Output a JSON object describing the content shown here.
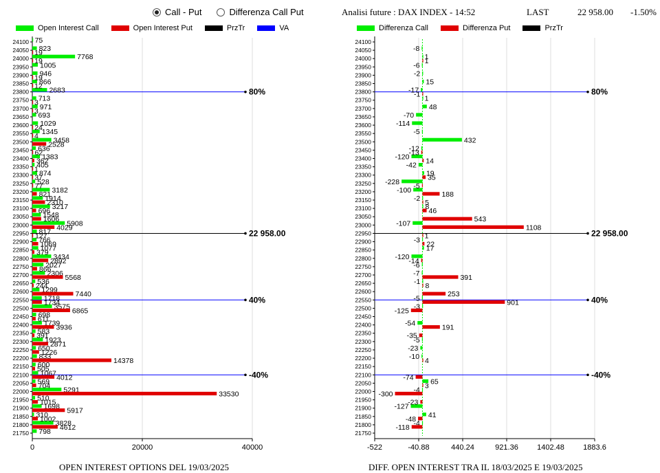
{
  "header": {
    "radio_call_put": "Call - Put",
    "radio_diff": "Differenza Call Put",
    "title": "Analisi future : DAX INDEX - 14:52",
    "last_label": "LAST",
    "last_value": "22 958.00",
    "last_change": "-1.50%"
  },
  "colors": {
    "call": "#00ee00",
    "put": "#e00000",
    "prztr": "#000000",
    "va": "#0000ff"
  },
  "legend_left": [
    {
      "label": "Open Interest Call",
      "color": "#00ee00"
    },
    {
      "label": "Open Interest Put",
      "color": "#e00000"
    },
    {
      "label": "PrzTr",
      "color": "#000000"
    },
    {
      "label": "VA",
      "color": "#0000ff"
    }
  ],
  "legend_right": [
    {
      "label": "Differenza Call",
      "color": "#00ee00"
    },
    {
      "label": "Differenza Put",
      "color": "#e00000"
    },
    {
      "label": "PrzTr",
      "color": "#000000"
    }
  ],
  "captions": {
    "left": "OPEN INTEREST OPTIONS DEL 19/03/2025",
    "right": "DIFF. OPEN INTEREST TRA IL 18/03/2025 E 19/03/2025"
  },
  "chart_data": [
    {
      "type": "bar",
      "orientation": "horizontal",
      "xticks": [
        0,
        20000,
        40000
      ],
      "xtick_labels": [
        "0",
        "20000",
        "40000"
      ],
      "xlim": [
        0,
        40000
      ],
      "strikes": [
        24100,
        24050,
        24000,
        23950,
        23900,
        23850,
        23800,
        23750,
        23700,
        23650,
        23600,
        23550,
        23500,
        23450,
        23400,
        23350,
        23300,
        23250,
        23200,
        23150,
        23100,
        23050,
        23000,
        22950,
        22900,
        22850,
        22800,
        22750,
        22700,
        22650,
        22600,
        22550,
        22500,
        22450,
        22400,
        22350,
        22300,
        22250,
        22200,
        22150,
        22100,
        22050,
        22000,
        21950,
        21900,
        21850,
        21800,
        21750
      ],
      "series": [
        {
          "name": "Open Interest Call",
          "values": [
            75,
            823,
            7768,
            1005,
            946,
            866,
            2683,
            713,
            971,
            693,
            1029,
            1345,
            3458,
            636,
            1383,
            405,
            874,
            528,
            3182,
            1914,
            3217,
            1548,
            5908,
            817,
            766,
            1077,
            3434,
            2027,
            2306,
            536,
            1299,
            1718,
            3575,
            698,
            1739,
            583,
            1923,
            650,
            833,
            600,
            1067,
            569,
            5291,
            510,
            1698,
            310,
            3828,
            798
          ],
          "labels": [
            "75",
            "823",
            "7768",
            "1005",
            "946",
            "866",
            "2683",
            "713",
            "971",
            "693",
            "1029",
            "1345",
            "3458",
            "636",
            "1383",
            "405",
            "874",
            "528",
            "3182",
            "1914",
            "3217",
            "1548",
            "5908",
            "817",
            "766",
            "1077",
            "3434",
            "2027",
            "2306",
            "536",
            "1299",
            "1718",
            "3575",
            "698",
            "1739",
            "583",
            "1923",
            "650",
            "833",
            "600",
            "1067",
            "569",
            "5291",
            "510",
            "1698",
            "310",
            "3828",
            "798"
          ]
        },
        {
          "name": "Open Interest Put",
          "values": [
            0,
            19,
            19,
            0,
            19,
            12,
            0,
            3,
            3,
            0,
            24,
            4,
            2528,
            62,
            362,
            1,
            37,
            77,
            821,
            2310,
            696,
            1606,
            4029,
            127,
            1069,
            379,
            2892,
            866,
            5568,
            244,
            7440,
            1734,
            6865,
            611,
            3936,
            391,
            2871,
            1226,
            14378,
            505,
            4012,
            704,
            33530,
            1015,
            5917,
            1002,
            4612,
            0
          ],
          "labels": [
            "",
            "19",
            "19",
            "",
            "19",
            "12",
            "",
            "3",
            "3",
            "",
            "24",
            "4",
            "2528",
            "62",
            "362",
            "1",
            "37",
            "77",
            "821",
            "2310",
            "696",
            "1606",
            "4029",
            "127",
            "1069",
            "379",
            "2892",
            "866",
            "5568",
            "244",
            "7440",
            "1734",
            "6865",
            "611",
            "3936",
            "391",
            "2871",
            "1226",
            "14378",
            "505",
            "4012",
            "704",
            "33530",
            "1015",
            "5917",
            "1002",
            "4612",
            ""
          ]
        }
      ],
      "reference_lines": [
        {
          "strike": 23800,
          "label": "80%",
          "color": "#0000ff"
        },
        {
          "strike": 22950,
          "label": "22 958.00",
          "color": "#000000"
        },
        {
          "strike": 22550,
          "label": "40%",
          "color": "#0000ff"
        },
        {
          "strike": 22100,
          "label": "-40%",
          "color": "#0000ff"
        }
      ]
    },
    {
      "type": "bar",
      "orientation": "horizontal",
      "xticks": [
        -522,
        -40.88,
        440.24,
        921.36,
        1402.48,
        1883.6
      ],
      "xtick_labels": [
        "-522",
        "-40.88",
        "440.24",
        "921.36",
        "1402.48",
        "1883.6"
      ],
      "xlim": [
        -522,
        1883.6
      ],
      "strikes": [
        24100,
        24050,
        24000,
        23950,
        23900,
        23850,
        23800,
        23750,
        23700,
        23650,
        23600,
        23550,
        23500,
        23450,
        23400,
        23350,
        23300,
        23250,
        23200,
        23150,
        23100,
        23050,
        23000,
        22950,
        22900,
        22850,
        22800,
        22750,
        22700,
        22650,
        22600,
        22550,
        22500,
        22450,
        22400,
        22350,
        22300,
        22250,
        22200,
        22150,
        22100,
        22050,
        22000,
        21950,
        21900,
        21850,
        21800,
        21750
      ],
      "series": [
        {
          "name": "Differenza Call",
          "values": [
            0,
            -8,
            1,
            -6,
            -2,
            15,
            -17,
            1,
            48,
            -70,
            -114,
            -5,
            432,
            -12,
            -120,
            -42,
            19,
            -228,
            -100,
            -2,
            8,
            0,
            -107,
            0,
            -3,
            17,
            -120,
            -6,
            -7,
            -1,
            0,
            -5,
            -3,
            0,
            -54,
            0,
            -5,
            -23,
            -10,
            0,
            0,
            65,
            -4,
            0,
            -127,
            41,
            -4,
            0
          ],
          "labels": [
            "",
            "-8",
            "1",
            "-6",
            "-2",
            "15",
            "-17",
            "1",
            "48",
            "-70",
            "-114",
            "-5",
            "432",
            "-12",
            "-120",
            "-42",
            "19",
            "-228",
            "-100",
            "-2",
            "8",
            "",
            "-107",
            "",
            "-3",
            "17",
            "-120",
            "-6",
            "-7",
            "-1",
            "",
            "-5",
            "-3",
            "",
            "-54",
            "",
            "-5",
            "-23",
            "-10",
            "",
            "",
            "65",
            "-4",
            "",
            "-127",
            "41",
            "-4",
            ""
          ]
        },
        {
          "name": "Differenza Put",
          "values": [
            0,
            0,
            1,
            0,
            0,
            0,
            -1,
            0,
            0,
            0,
            0,
            0,
            0,
            -13,
            14,
            0,
            35,
            -5,
            188,
            5,
            46,
            543,
            1108,
            1,
            22,
            0,
            -14,
            0,
            391,
            8,
            253,
            901,
            -125,
            0,
            191,
            -35,
            0,
            0,
            4,
            0,
            -74,
            3,
            -300,
            -23,
            0,
            -48,
            -118,
            0
          ],
          "labels": [
            "",
            "",
            "1",
            "",
            "",
            "",
            "-1",
            "",
            "",
            "",
            "",
            "",
            "",
            "-13",
            "14",
            "",
            "35",
            "-5",
            "188",
            "5",
            "46",
            "543",
            "1108",
            "1",
            "22",
            "",
            "-14",
            "",
            "391",
            "8",
            "253",
            "901",
            "-125",
            "",
            "191",
            "-35",
            "",
            "",
            "4",
            "",
            "-74",
            "3",
            "-300",
            "-23",
            "",
            "-48",
            "-118",
            ""
          ]
        }
      ],
      "reference_lines": [
        {
          "strike": 23800,
          "label": "80%",
          "color": "#0000ff"
        },
        {
          "strike": 22950,
          "label": "22 958.00",
          "color": "#000000"
        },
        {
          "strike": 22550,
          "label": "40%",
          "color": "#0000ff"
        },
        {
          "strike": 22100,
          "label": "-40%",
          "color": "#0000ff"
        }
      ]
    }
  ]
}
